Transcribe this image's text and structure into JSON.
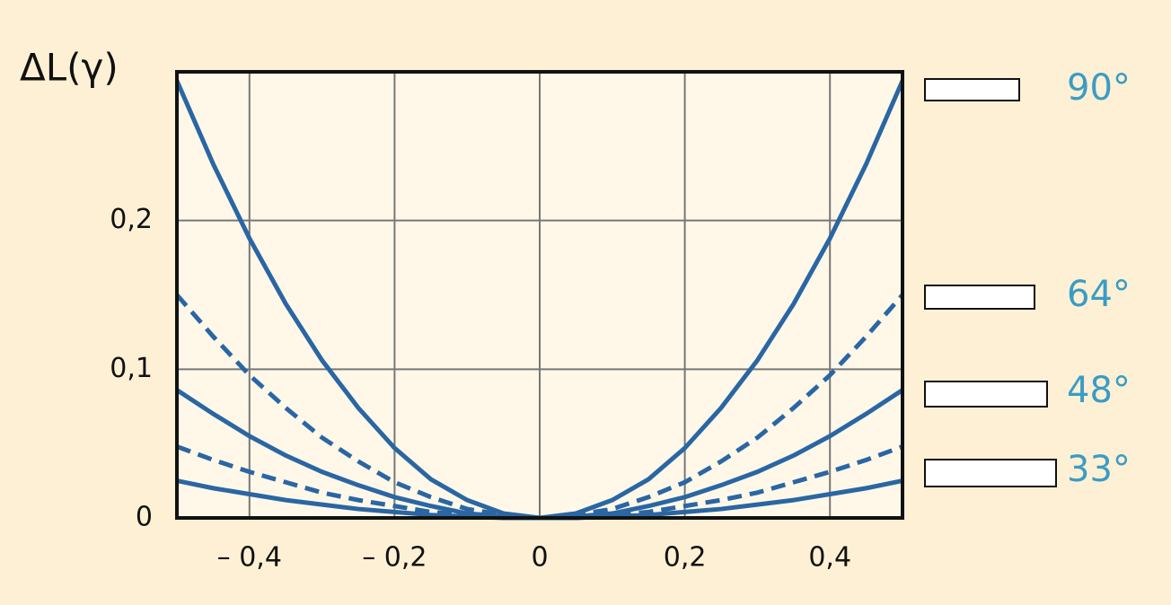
{
  "chart_data": {
    "type": "line",
    "y_label": "ΔL(γ)",
    "x": [
      -0.5,
      -0.45,
      -0.4,
      -0.35,
      -0.3,
      -0.25,
      -0.2,
      -0.15,
      -0.1,
      -0.05,
      0,
      0.05,
      0.1,
      0.15,
      0.2,
      0.25,
      0.3,
      0.35,
      0.4,
      0.45,
      0.5
    ],
    "series": [
      {
        "name": "90°",
        "color": "#2a66a3",
        "dashed": false,
        "values": [
          0.294,
          0.238,
          0.188,
          0.144,
          0.106,
          0.074,
          0.047,
          0.026,
          0.012,
          0.003,
          0,
          0.003,
          0.012,
          0.026,
          0.047,
          0.074,
          0.106,
          0.144,
          0.188,
          0.238,
          0.294
        ]
      },
      {
        "name": "64°",
        "color": "#2a66a3",
        "dashed": true,
        "values": [
          0.15,
          0.122,
          0.096,
          0.074,
          0.054,
          0.038,
          0.024,
          0.014,
          0.006,
          0.002,
          0,
          0.002,
          0.006,
          0.014,
          0.024,
          0.038,
          0.054,
          0.074,
          0.096,
          0.122,
          0.15
        ]
      },
      {
        "name": "48°",
        "color": "#2a66a3",
        "dashed": false,
        "values": [
          0.086,
          0.07,
          0.055,
          0.042,
          0.031,
          0.022,
          0.014,
          0.008,
          0.003,
          0.001,
          0,
          0.001,
          0.003,
          0.008,
          0.014,
          0.022,
          0.031,
          0.042,
          0.055,
          0.07,
          0.086
        ]
      },
      {
        "color": "#2a66a3",
        "dashed": true,
        "values": [
          0.048,
          0.039,
          0.031,
          0.024,
          0.017,
          0.012,
          0.008,
          0.004,
          0.002,
          0,
          0,
          0,
          0.002,
          0.004,
          0.008,
          0.012,
          0.017,
          0.024,
          0.031,
          0.039,
          0.048
        ]
      },
      {
        "name": "33°",
        "color": "#2a66a3",
        "dashed": false,
        "values": [
          0.025,
          0.02,
          0.016,
          0.012,
          0.009,
          0.006,
          0.004,
          0.002,
          0.001,
          0,
          0,
          0,
          0.001,
          0.002,
          0.004,
          0.006,
          0.009,
          0.012,
          0.016,
          0.02,
          0.025
        ]
      }
    ],
    "label_color": "#3a9cc4",
    "xlim": [
      -0.5,
      0.5
    ],
    "xticks": [
      {
        "value": -0.4,
        "label": "– 0,4"
      },
      {
        "value": -0.2,
        "label": "– 0,2"
      },
      0,
      {
        "value": 0.2,
        "label": "0,2"
      },
      {
        "value": 0.4,
        "label": "0,4"
      }
    ],
    "ylim": [
      0,
      0.3
    ],
    "yticks": [
      0,
      {
        "value": 0.1,
        "label": "0,1"
      },
      {
        "value": 0.2,
        "label": "0,2"
      }
    ],
    "grid": true
  }
}
